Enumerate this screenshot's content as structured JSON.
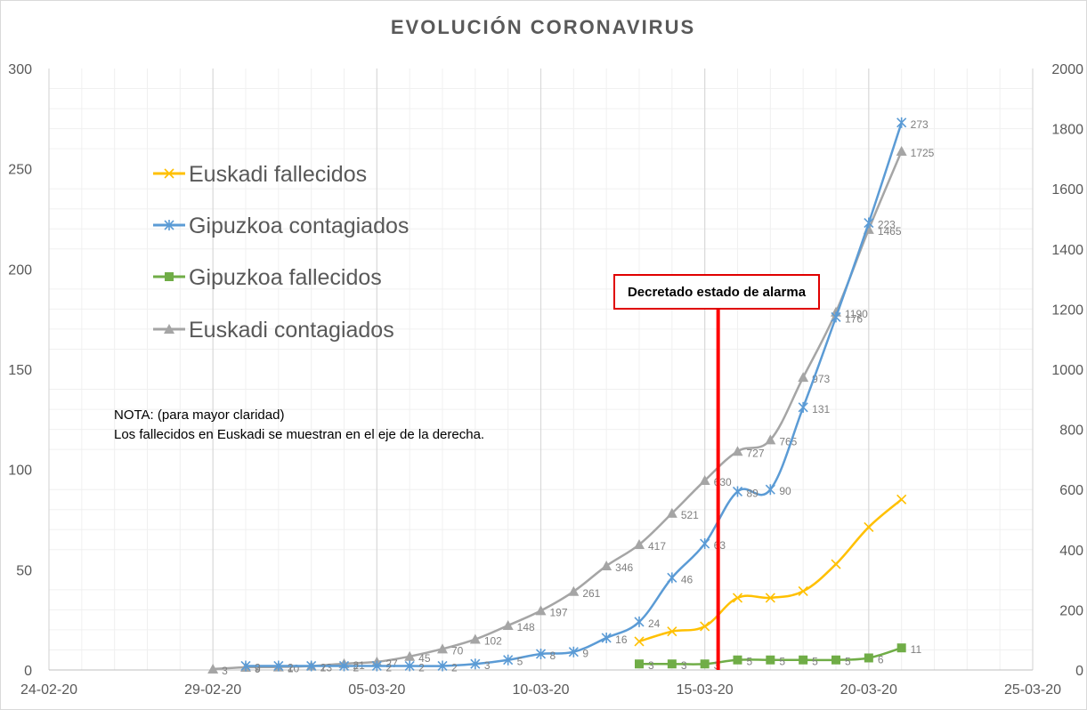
{
  "chart_data": {
    "type": "line",
    "title": "EVOLUCIÓN  CORONAVIRUS",
    "x_ticks": [
      "24-02-20",
      "29-02-20",
      "05-03-20",
      "10-03-20",
      "15-03-20",
      "20-03-20",
      "25-03-20"
    ],
    "y_left_ticks": [
      "0",
      "50",
      "100",
      "150",
      "200",
      "250",
      "300"
    ],
    "y_right_ticks": [
      "0",
      "200",
      "400",
      "600",
      "800",
      "1000",
      "1200",
      "1400",
      "1600",
      "1800",
      "2000"
    ],
    "ylim_left": [
      0,
      300
    ],
    "ylim_right": [
      0,
      2000
    ],
    "xlim": [
      "2020-02-24",
      "2020-03-25"
    ],
    "grid": true,
    "legend_position": "upper-left",
    "series": [
      {
        "name": "Euskadi fallecidos",
        "axis": "right",
        "color": "#ffc000",
        "marker": "x",
        "x": [
          "2020-03-13",
          "2020-03-14",
          "2020-03-15",
          "2020-03-16",
          "2020-03-17",
          "2020-03-18",
          "2020-03-19",
          "2020-03-20",
          "2020-03-21"
        ],
        "y": [
          95,
          128,
          145,
          240,
          240,
          262,
          352,
          475,
          567
        ],
        "labels": []
      },
      {
        "name": "Gipuzkoa contagiados",
        "axis": "left",
        "color": "#5b9bd5",
        "marker": "star",
        "x": [
          "2020-03-01",
          "2020-03-02",
          "2020-03-03",
          "2020-03-04",
          "2020-03-05",
          "2020-03-06",
          "2020-03-07",
          "2020-03-08",
          "2020-03-09",
          "2020-03-10",
          "2020-03-11",
          "2020-03-12",
          "2020-03-13",
          "2020-03-14",
          "2020-03-15",
          "2020-03-16",
          "2020-03-17",
          "2020-03-18",
          "2020-03-19",
          "2020-03-20",
          "2020-03-21"
        ],
        "y": [
          2,
          2,
          2,
          2,
          2,
          2,
          2,
          3,
          5,
          8,
          9,
          16,
          24,
          46,
          63,
          89,
          90,
          131,
          176,
          223,
          273
        ],
        "labels": [
          "2",
          "2",
          "2",
          "2",
          "2",
          "2",
          "2",
          "3",
          "5",
          "8",
          "9",
          "16",
          "24",
          "46",
          "63",
          "89",
          "90",
          "131",
          "176",
          "223",
          "273"
        ]
      },
      {
        "name": "Gipuzkoa fallecidos",
        "axis": "left",
        "color": "#70ad47",
        "marker": "square",
        "x": [
          "2020-03-13",
          "2020-03-14",
          "2020-03-15",
          "2020-03-16",
          "2020-03-17",
          "2020-03-18",
          "2020-03-19",
          "2020-03-20",
          "2020-03-21"
        ],
        "y": [
          3,
          3,
          3,
          5,
          5,
          5,
          5,
          6,
          11
        ],
        "labels": [
          "3",
          "3",
          "3",
          "5",
          "5",
          "5",
          "5",
          "6",
          "11"
        ]
      },
      {
        "name": "Euskadi contagiados",
        "axis": "right",
        "color": "#a5a5a5",
        "marker": "triangle",
        "x": [
          "2020-02-29",
          "2020-03-01",
          "2020-03-02",
          "2020-03-03",
          "2020-03-04",
          "2020-03-05",
          "2020-03-06",
          "2020-03-07",
          "2020-03-08",
          "2020-03-09",
          "2020-03-10",
          "2020-03-11",
          "2020-03-12",
          "2020-03-13",
          "2020-03-14",
          "2020-03-15",
          "2020-03-16",
          "2020-03-17",
          "2020-03-18",
          "2020-03-19",
          "2020-03-20",
          "2020-03-21"
        ],
        "y": [
          3,
          9,
          10,
          13,
          21,
          27,
          45,
          70,
          102,
          148,
          197,
          261,
          346,
          417,
          521,
          630,
          727,
          765,
          973,
          1190,
          1465,
          1725
        ],
        "labels": [
          "3",
          "9",
          "10",
          "13",
          "21",
          "27",
          "45",
          "70",
          "102",
          "148",
          "197",
          "261",
          "346",
          "417",
          "521",
          "630",
          "727",
          "765",
          "973",
          "1190",
          "1465",
          "1725"
        ]
      }
    ],
    "annotations": {
      "alarm_label": "Decretado estado de alarma",
      "alarm_date": "2020-03-15",
      "note_line1": "NOTA: (para mayor claridad)",
      "note_line2": "Los fallecidos en Euskadi se muestran en el eje de la derecha."
    }
  }
}
